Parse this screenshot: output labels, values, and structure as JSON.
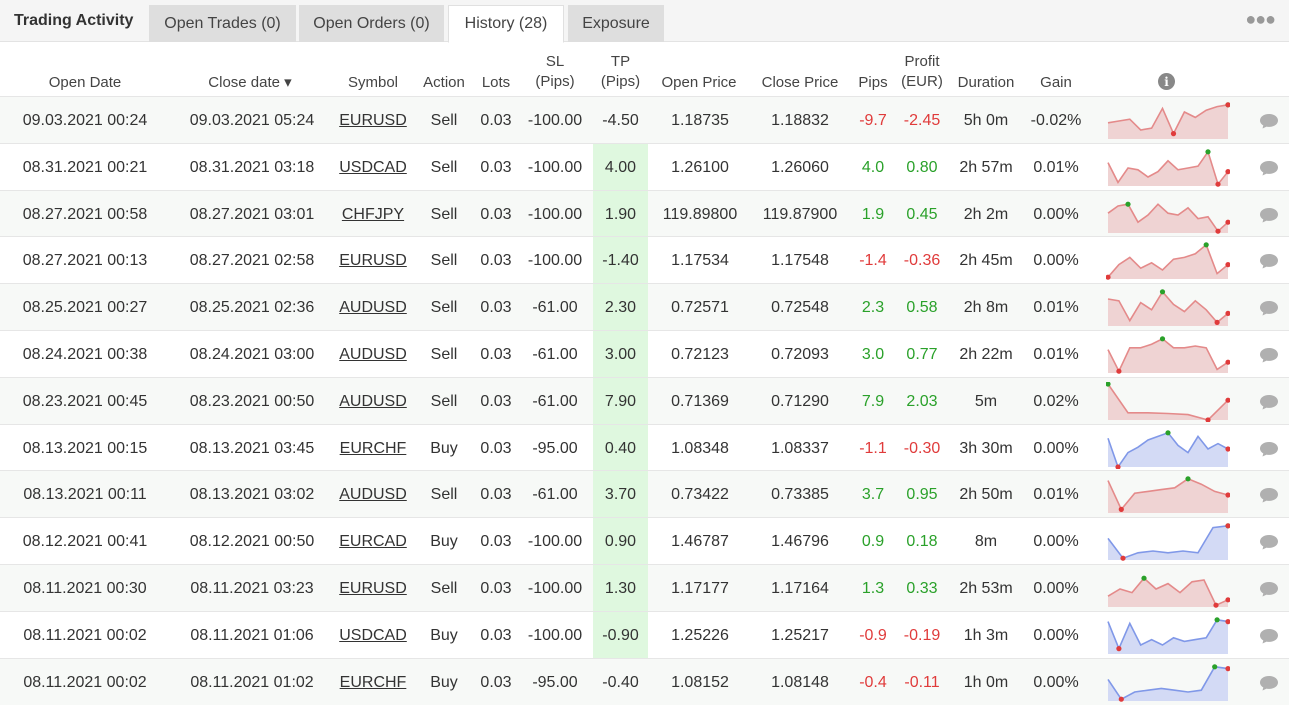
{
  "tabs": {
    "title": "Trading Activity",
    "items": [
      {
        "label": "Open Trades (0)",
        "active": false
      },
      {
        "label": "Open Orders (0)",
        "active": false
      },
      {
        "label": "History (28)",
        "active": true
      },
      {
        "label": "Exposure",
        "active": false
      }
    ],
    "more_icon": "ellipsis-icon"
  },
  "columns": {
    "open_date": "Open Date",
    "close_date": "Close date ▾",
    "symbol": "Symbol",
    "action": "Action",
    "lots": "Lots",
    "sl_line1": "SL",
    "sl_line2": "(Pips)",
    "tp_line1": "TP",
    "tp_line2": "(Pips)",
    "open_price": "Open Price",
    "close_price": "Close Price",
    "pips": "Pips",
    "profit_line1": "Profit",
    "profit_line2": "(EUR)",
    "duration": "Duration",
    "gain": "Gain",
    "info_icon": "info-icon"
  },
  "colors": {
    "positive": "#2aa12a",
    "negative": "#e03b3b",
    "tp_highlight": "#dff8df",
    "spark_sell_fill": "#efd3d3",
    "spark_sell_line": "#e48a8a",
    "spark_buy_fill": "#d3daf5",
    "spark_buy_line": "#8098e8"
  },
  "rows": [
    {
      "open": "09.03.2021 00:24",
      "close": "09.03.2021 05:24",
      "symbol": "EURUSD",
      "action": "Sell",
      "lots": "0.03",
      "sl": "-100.00",
      "tp": "-4.50",
      "open_price": "1.18735",
      "close_price": "1.18832",
      "pips": "-9.7",
      "profit": "-2.45",
      "duration": "5h 0m",
      "gain": "-0.02%",
      "pos": false,
      "tp_hl": false,
      "spark": [
        0.55,
        0.5,
        0.45,
        0.75,
        0.7,
        0.15,
        0.85,
        0.25,
        0.4,
        0.2,
        0.1,
        0.05
      ]
    },
    {
      "open": "08.31.2021 00:21",
      "close": "08.31.2021 03:18",
      "symbol": "USDCAD",
      "action": "Sell",
      "lots": "0.03",
      "sl": "-100.00",
      "tp": "4.00",
      "open_price": "1.26100",
      "close_price": "1.26060",
      "pips": "4.0",
      "profit": "0.80",
      "duration": "2h 57m",
      "gain": "0.01%",
      "pos": true,
      "tp_hl": true,
      "spark": [
        0.35,
        0.9,
        0.5,
        0.55,
        0.75,
        0.6,
        0.3,
        0.55,
        0.5,
        0.45,
        0.05,
        0.95,
        0.6
      ]
    },
    {
      "open": "08.27.2021 00:58",
      "close": "08.27.2021 03:01",
      "symbol": "CHFJPY",
      "action": "Sell",
      "lots": "0.03",
      "sl": "-100.00",
      "tp": "1.90",
      "open_price": "119.89800",
      "close_price": "119.87900",
      "pips": "1.9",
      "profit": "0.45",
      "duration": "2h 2m",
      "gain": "0.00%",
      "pos": true,
      "tp_hl": true,
      "spark": [
        0.45,
        0.25,
        0.2,
        0.7,
        0.5,
        0.2,
        0.45,
        0.5,
        0.3,
        0.6,
        0.55,
        0.95,
        0.7
      ]
    },
    {
      "open": "08.27.2021 00:13",
      "close": "08.27.2021 02:58",
      "symbol": "EURUSD",
      "action": "Sell",
      "lots": "0.03",
      "sl": "-100.00",
      "tp": "-1.40",
      "open_price": "1.17534",
      "close_price": "1.17548",
      "pips": "-1.4",
      "profit": "-0.36",
      "duration": "2h 45m",
      "gain": "0.00%",
      "pos": false,
      "tp_hl": false,
      "spark": [
        0.95,
        0.6,
        0.4,
        0.7,
        0.55,
        0.75,
        0.45,
        0.4,
        0.3,
        0.05,
        0.85,
        0.6
      ]
    },
    {
      "open": "08.25.2021 00:27",
      "close": "08.25.2021 02:36",
      "symbol": "AUDUSD",
      "action": "Sell",
      "lots": "0.03",
      "sl": "-61.00",
      "tp": "2.30",
      "open_price": "0.72571",
      "close_price": "0.72548",
      "pips": "2.3",
      "profit": "0.58",
      "duration": "2h 8m",
      "gain": "0.01%",
      "pos": true,
      "tp_hl": true,
      "spark": [
        0.25,
        0.3,
        0.85,
        0.35,
        0.55,
        0.05,
        0.4,
        0.6,
        0.3,
        0.55,
        0.9,
        0.65
      ]
    },
    {
      "open": "08.24.2021 00:38",
      "close": "08.24.2021 03:00",
      "symbol": "AUDUSD",
      "action": "Sell",
      "lots": "0.03",
      "sl": "-61.00",
      "tp": "3.00",
      "open_price": "0.72123",
      "close_price": "0.72093",
      "pips": "3.0",
      "profit": "0.77",
      "duration": "2h 22m",
      "gain": "0.01%",
      "pos": true,
      "tp_hl": true,
      "spark": [
        0.35,
        0.95,
        0.3,
        0.3,
        0.2,
        0.05,
        0.3,
        0.3,
        0.25,
        0.3,
        0.9,
        0.7
      ]
    },
    {
      "open": "08.23.2021 00:45",
      "close": "08.23.2021 00:50",
      "symbol": "AUDUSD",
      "action": "Sell",
      "lots": "0.03",
      "sl": "-61.00",
      "tp": "7.90",
      "open_price": "0.71369",
      "close_price": "0.71290",
      "pips": "7.9",
      "profit": "2.03",
      "duration": "5m",
      "gain": "0.02%",
      "pos": true,
      "tp_hl": true,
      "spark": [
        0.0,
        0.8,
        0.8,
        0.82,
        0.85,
        1.0,
        0.45
      ]
    },
    {
      "open": "08.13.2021 00:15",
      "close": "08.13.2021 03:45",
      "symbol": "EURCHF",
      "action": "Buy",
      "lots": "0.03",
      "sl": "-95.00",
      "tp": "0.40",
      "open_price": "1.08348",
      "close_price": "1.08337",
      "pips": "-1.1",
      "profit": "-0.30",
      "duration": "3h 30m",
      "gain": "0.00%",
      "pos": false,
      "tp_hl": false,
      "spark": [
        0.2,
        1.0,
        0.6,
        0.45,
        0.25,
        0.15,
        0.05,
        0.4,
        0.6,
        0.15,
        0.5,
        0.35,
        0.5
      ]
    },
    {
      "open": "08.13.2021 00:11",
      "close": "08.13.2021 03:02",
      "symbol": "AUDUSD",
      "action": "Sell",
      "lots": "0.03",
      "sl": "-61.00",
      "tp": "3.70",
      "open_price": "0.73422",
      "close_price": "0.73385",
      "pips": "3.7",
      "profit": "0.95",
      "duration": "2h 50m",
      "gain": "0.01%",
      "pos": true,
      "tp_hl": true,
      "spark": [
        0.1,
        0.9,
        0.45,
        0.4,
        0.35,
        0.3,
        0.05,
        0.2,
        0.4,
        0.5
      ]
    },
    {
      "open": "08.12.2021 00:41",
      "close": "08.12.2021 00:50",
      "symbol": "EURCAD",
      "action": "Buy",
      "lots": "0.03",
      "sl": "-100.00",
      "tp": "0.90",
      "open_price": "1.46787",
      "close_price": "1.46796",
      "pips": "0.9",
      "profit": "0.18",
      "duration": "8m",
      "gain": "0.00%",
      "pos": true,
      "tp_hl": true,
      "spark": [
        0.4,
        0.95,
        0.8,
        0.75,
        0.8,
        0.75,
        0.8,
        0.1,
        0.05
      ]
    },
    {
      "open": "08.11.2021 00:30",
      "close": "08.11.2021 03:23",
      "symbol": "EURUSD",
      "action": "Sell",
      "lots": "0.03",
      "sl": "-100.00",
      "tp": "1.30",
      "open_price": "1.17177",
      "close_price": "1.17164",
      "pips": "1.3",
      "profit": "0.33",
      "duration": "2h 53m",
      "gain": "0.00%",
      "pos": true,
      "tp_hl": true,
      "spark": [
        0.7,
        0.5,
        0.6,
        0.2,
        0.5,
        0.35,
        0.6,
        0.3,
        0.25,
        0.95,
        0.8
      ]
    },
    {
      "open": "08.11.2021 00:02",
      "close": "08.11.2021 01:06",
      "symbol": "USDCAD",
      "action": "Buy",
      "lots": "0.03",
      "sl": "-100.00",
      "tp": "-0.90",
      "open_price": "1.25226",
      "close_price": "1.25217",
      "pips": "-0.9",
      "profit": "-0.19",
      "duration": "1h 3m",
      "gain": "0.00%",
      "pos": false,
      "tp_hl": false,
      "spark": [
        0.1,
        0.85,
        0.15,
        0.75,
        0.6,
        0.75,
        0.55,
        0.65,
        0.6,
        0.55,
        0.05,
        0.1
      ]
    },
    {
      "open": "08.11.2021 00:02",
      "close": "08.11.2021 01:02",
      "symbol": "EURCHF",
      "action": "Buy",
      "lots": "0.03",
      "sl": "-95.00",
      "tp": "-0.40",
      "open_price": "1.08152",
      "close_price": "1.08148",
      "pips": "-0.4",
      "profit": "-0.11",
      "duration": "1h 0m",
      "gain": "0.00%",
      "pos": false,
      "tp_hl": false,
      "spark": [
        0.4,
        0.95,
        0.75,
        0.7,
        0.65,
        0.7,
        0.75,
        0.7,
        0.05,
        0.1
      ]
    }
  ]
}
